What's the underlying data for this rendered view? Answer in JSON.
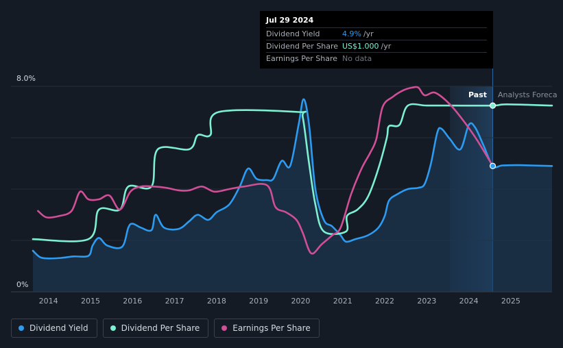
{
  "tooltip": {
    "date": "Jul 29 2024",
    "rows": [
      {
        "label": "Dividend Yield",
        "value": "4.9%",
        "unit": "/yr"
      },
      {
        "label": "Dividend Per Share",
        "value": "US$1.000",
        "unit": "/yr"
      },
      {
        "label": "Earnings Per Share",
        "value": "No data",
        "unit": ""
      }
    ]
  },
  "regions": {
    "past_label": "Past",
    "forecast_label": "Analysts Foreca"
  },
  "legend": [
    {
      "label": "Dividend Yield",
      "color": "#2d9bf0"
    },
    {
      "label": "Dividend Per Share",
      "color": "#7ef0d2"
    },
    {
      "label": "Earnings Per Share",
      "color": "#d04f97"
    }
  ],
  "chart_data": {
    "type": "line",
    "title": "",
    "xlabel": "",
    "ylabel": "",
    "ylim": [
      0,
      8
    ],
    "y_tick_labels": [
      "0%",
      "8.0%"
    ],
    "x_tick_labels": [
      "2014",
      "2015",
      "2016",
      "2017",
      "2018",
      "2019",
      "2020",
      "2021",
      "2022",
      "2023",
      "2024",
      "2025"
    ],
    "xlim": [
      2013.63,
      2025.98
    ],
    "forecast_start": 2023.55,
    "current_x": 2024.57,
    "grid": true,
    "legend_placement": "bottom-left",
    "series": [
      {
        "name": "Dividend Yield",
        "color": "#2d9bf0",
        "area": true,
        "points": [
          [
            2013.63,
            1.6
          ],
          [
            2013.8,
            1.35
          ],
          [
            2014.0,
            1.3
          ],
          [
            2014.3,
            1.32
          ],
          [
            2014.6,
            1.38
          ],
          [
            2014.95,
            1.4
          ],
          [
            2015.05,
            1.8
          ],
          [
            2015.2,
            2.1
          ],
          [
            2015.4,
            1.8
          ],
          [
            2015.75,
            1.75
          ],
          [
            2015.9,
            2.5
          ],
          [
            2016.0,
            2.65
          ],
          [
            2016.2,
            2.5
          ],
          [
            2016.45,
            2.4
          ],
          [
            2016.55,
            3.0
          ],
          [
            2016.75,
            2.5
          ],
          [
            2017.1,
            2.45
          ],
          [
            2017.35,
            2.75
          ],
          [
            2017.55,
            3.0
          ],
          [
            2017.8,
            2.8
          ],
          [
            2018.0,
            3.1
          ],
          [
            2018.3,
            3.4
          ],
          [
            2018.55,
            4.1
          ],
          [
            2018.75,
            4.8
          ],
          [
            2018.95,
            4.4
          ],
          [
            2019.2,
            4.35
          ],
          [
            2019.35,
            4.4
          ],
          [
            2019.55,
            5.1
          ],
          [
            2019.75,
            4.9
          ],
          [
            2019.95,
            6.5
          ],
          [
            2020.07,
            7.5
          ],
          [
            2020.2,
            6.5
          ],
          [
            2020.35,
            4.0
          ],
          [
            2020.55,
            2.8
          ],
          [
            2020.75,
            2.55
          ],
          [
            2020.95,
            2.2
          ],
          [
            2021.08,
            1.95
          ],
          [
            2021.3,
            2.05
          ],
          [
            2021.6,
            2.2
          ],
          [
            2021.85,
            2.5
          ],
          [
            2022.0,
            2.95
          ],
          [
            2022.1,
            3.55
          ],
          [
            2022.3,
            3.8
          ],
          [
            2022.55,
            4.0
          ],
          [
            2022.8,
            4.05
          ],
          [
            2022.95,
            4.2
          ],
          [
            2023.1,
            5.0
          ],
          [
            2023.25,
            6.2
          ],
          [
            2023.35,
            6.35
          ],
          [
            2023.55,
            5.95
          ],
          [
            2023.8,
            5.55
          ],
          [
            2024.0,
            6.5
          ],
          [
            2024.15,
            6.4
          ],
          [
            2024.35,
            5.7
          ],
          [
            2024.57,
            4.9
          ],
          [
            2024.8,
            4.92
          ],
          [
            2025.2,
            4.93
          ],
          [
            2025.98,
            4.9
          ]
        ]
      },
      {
        "name": "Dividend Per Share",
        "color": "#7ef0d2",
        "area": false,
        "points": [
          [
            2013.63,
            2.05
          ],
          [
            2014.95,
            2.05
          ],
          [
            2015.2,
            3.2
          ],
          [
            2015.7,
            3.2
          ],
          [
            2015.9,
            4.1
          ],
          [
            2016.45,
            4.1
          ],
          [
            2016.6,
            5.55
          ],
          [
            2017.35,
            5.55
          ],
          [
            2017.55,
            6.1
          ],
          [
            2017.85,
            6.1
          ],
          [
            2018.05,
            7.0
          ],
          [
            2019.95,
            7.0
          ],
          [
            2020.05,
            6.8
          ],
          [
            2020.2,
            5.0
          ],
          [
            2020.35,
            3.4
          ],
          [
            2020.55,
            2.35
          ],
          [
            2021.08,
            2.35
          ],
          [
            2021.1,
            2.95
          ],
          [
            2021.35,
            3.2
          ],
          [
            2021.6,
            3.7
          ],
          [
            2021.85,
            4.8
          ],
          [
            2022.05,
            6.0
          ],
          [
            2022.1,
            6.45
          ],
          [
            2022.35,
            6.5
          ],
          [
            2022.55,
            7.25
          ],
          [
            2023.0,
            7.25
          ],
          [
            2023.55,
            7.25
          ],
          [
            2024.57,
            7.25
          ],
          [
            2024.9,
            7.3
          ],
          [
            2025.98,
            7.25
          ]
        ]
      },
      {
        "name": "Earnings Per Share",
        "color": "#d04f97",
        "area": false,
        "points": [
          [
            2013.75,
            3.15
          ],
          [
            2013.95,
            2.9
          ],
          [
            2014.25,
            2.95
          ],
          [
            2014.55,
            3.15
          ],
          [
            2014.75,
            3.9
          ],
          [
            2014.95,
            3.6
          ],
          [
            2015.2,
            3.6
          ],
          [
            2015.45,
            3.75
          ],
          [
            2015.7,
            3.2
          ],
          [
            2015.95,
            3.9
          ],
          [
            2016.2,
            4.1
          ],
          [
            2016.5,
            4.1
          ],
          [
            2016.8,
            4.05
          ],
          [
            2017.1,
            3.95
          ],
          [
            2017.35,
            3.95
          ],
          [
            2017.65,
            4.1
          ],
          [
            2017.95,
            3.9
          ],
          [
            2018.3,
            4.0
          ],
          [
            2018.65,
            4.1
          ],
          [
            2019.2,
            4.15
          ],
          [
            2019.4,
            3.3
          ],
          [
            2019.65,
            3.1
          ],
          [
            2019.9,
            2.8
          ],
          [
            2020.05,
            2.3
          ],
          [
            2020.25,
            1.5
          ],
          [
            2020.5,
            1.85
          ],
          [
            2020.75,
            2.2
          ],
          [
            2020.95,
            2.5
          ],
          [
            2021.2,
            3.8
          ],
          [
            2021.45,
            4.8
          ],
          [
            2021.65,
            5.4
          ],
          [
            2021.8,
            5.95
          ],
          [
            2021.95,
            7.2
          ],
          [
            2022.2,
            7.6
          ],
          [
            2022.45,
            7.85
          ],
          [
            2022.65,
            7.95
          ],
          [
            2022.8,
            7.95
          ],
          [
            2022.95,
            7.65
          ],
          [
            2023.2,
            7.75
          ],
          [
            2023.55,
            7.3
          ],
          [
            2023.9,
            6.6
          ],
          [
            2024.2,
            5.9
          ],
          [
            2024.57,
            4.9
          ]
        ]
      }
    ]
  }
}
